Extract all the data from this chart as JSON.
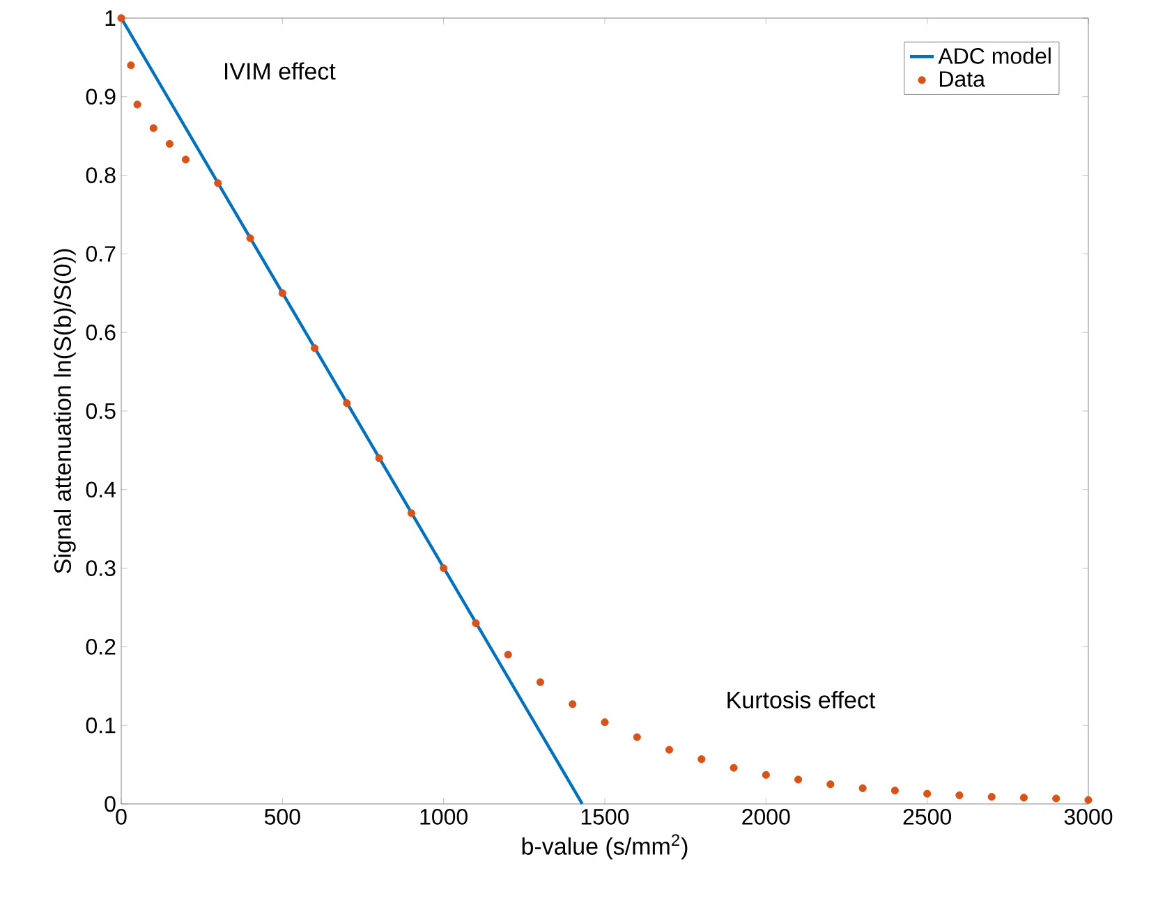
{
  "chart_data": {
    "type": "line",
    "xlabel": "b-value (s/mm$^{2}$)",
    "ylabel": "Signal attenuation ln(S(b)/S(0))",
    "xlim": [
      0,
      3000
    ],
    "ylim": [
      0,
      1
    ],
    "xticks": [
      0,
      500,
      1000,
      1500,
      2000,
      2500,
      3000
    ],
    "yticks": [
      0,
      0.1,
      0.2,
      0.3,
      0.4,
      0.5,
      0.6,
      0.7,
      0.8,
      0.9,
      1
    ],
    "legend": "top right",
    "annotations": [
      "IVIM effect",
      "Kurtosis effect"
    ],
    "series": [
      {
        "name": "ADC model",
        "color": "#0072bd",
        "line_style": "solid",
        "marker": "none",
        "x": [
          0,
          1430
        ],
        "values": [
          1,
          0
        ]
      },
      {
        "name": "Data",
        "type": "scatter",
        "color": "#d95319",
        "marker": "circle",
        "x": [
          0,
          30,
          50,
          100,
          150,
          200,
          300,
          400,
          500,
          600,
          700,
          800,
          900,
          1000,
          1100,
          1200,
          1300,
          1400,
          1500,
          1600,
          1700,
          1800,
          1900,
          2000,
          2100,
          2200,
          2300,
          2400,
          2500,
          2600,
          2700,
          2800,
          2900,
          3000
        ],
        "values": [
          1,
          0.94,
          0.89,
          0.86,
          0.84,
          0.82,
          0.79,
          0.72,
          0.65,
          0.58,
          0.51,
          0.44,
          0.37,
          0.3,
          0.23,
          0.19,
          0.155,
          0.127,
          0.104,
          0.085,
          0.069,
          0.057,
          0.046,
          0.037,
          0.031,
          0.025,
          0.02,
          0.017,
          0.013,
          0.011,
          0.009,
          0.008,
          0.007,
          0.005
        ]
      }
    ]
  }
}
